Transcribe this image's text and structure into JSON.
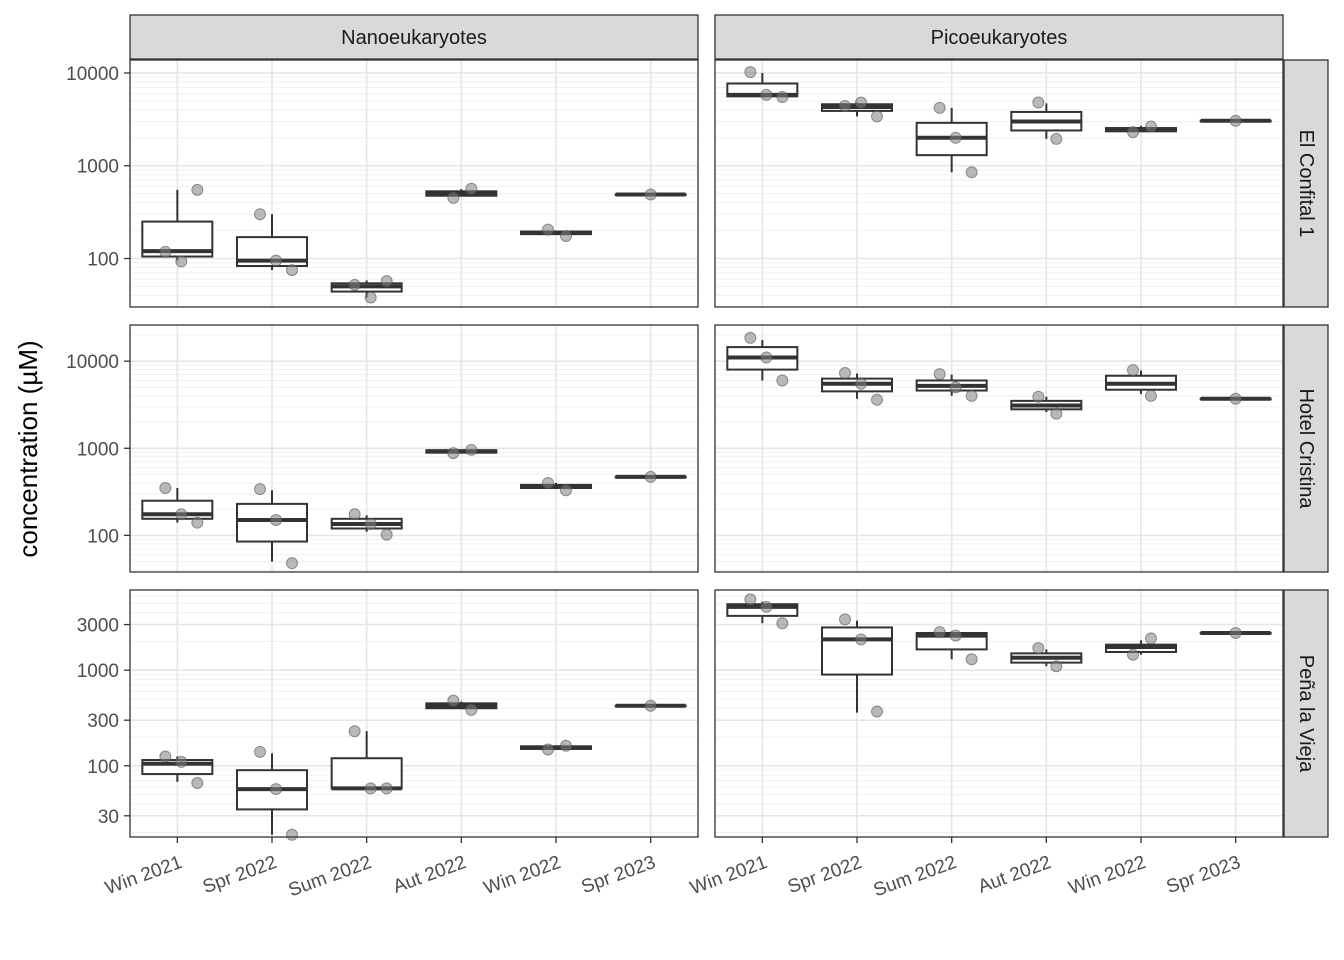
{
  "chart_data": {
    "type": "boxplot",
    "ylabel": "concentration (µM)",
    "xlabel": "",
    "y_scale": "log10",
    "grid": true,
    "columns": [
      "Nanoeukaryotes",
      "Picoeukaryotes"
    ],
    "rows": [
      "El Confital 1",
      "Hotel Cristina",
      "Peña la Vieja"
    ],
    "categories": [
      "Win 2021",
      "Spr 2022",
      "Sum 2022",
      "Aut 2022",
      "Win 2022",
      "Spr 2023"
    ],
    "row_axes": [
      {
        "ylim": [
          30,
          13800
        ],
        "ticks": [
          100,
          1000,
          10000
        ],
        "tick_labels": [
          "100",
          "1000",
          "10000"
        ]
      },
      {
        "ylim": [
          38,
          26000
        ],
        "ticks": [
          100,
          1000,
          10000
        ],
        "tick_labels": [
          "100",
          "1000",
          "10000"
        ]
      },
      {
        "ylim": [
          18,
          6900
        ],
        "ticks": [
          30,
          100,
          300,
          1000,
          3000
        ],
        "tick_labels": [
          "30",
          "100",
          "300",
          "1000",
          "3000"
        ]
      }
    ],
    "panels": [
      {
        "column": "Nanoeukaryotes",
        "row": "El Confital 1",
        "boxes": [
          {
            "category": "Win 2021",
            "min": 95,
            "q1": 105,
            "median": 120,
            "q3": 250,
            "max": 550,
            "points": [
              118,
              93,
              550
            ]
          },
          {
            "category": "Spr 2022",
            "min": 75,
            "q1": 83,
            "median": 95,
            "q3": 170,
            "max": 300,
            "points": [
              300,
              95,
              75
            ]
          },
          {
            "category": "Sum 2022",
            "min": 38,
            "q1": 44,
            "median": 50,
            "q3": 54,
            "max": 58,
            "points": [
              52,
              38,
              57
            ]
          },
          {
            "category": "Aut 2022",
            "min": 470,
            "q1": 475,
            "median": 500,
            "q3": 530,
            "max": 560,
            "points": [
              450,
              565
            ]
          },
          {
            "category": "Win 2022",
            "min": 180,
            "q1": 183,
            "median": 190,
            "q3": 195,
            "max": 200,
            "points": [
              205,
              175
            ]
          },
          {
            "category": "Spr 2023",
            "min": 490,
            "q1": 490,
            "median": 490,
            "q3": 490,
            "max": 490,
            "points": [
              490
            ]
          }
        ]
      },
      {
        "column": "Picoeukaryotes",
        "row": "El Confital 1",
        "boxes": [
          {
            "category": "Win 2021",
            "min": 5500,
            "q1": 5600,
            "median": 5800,
            "q3": 7700,
            "max": 10000,
            "points": [
              10200,
              5800,
              5500
            ]
          },
          {
            "category": "Spr 2022",
            "min": 3400,
            "q1": 3900,
            "median": 4300,
            "q3": 4600,
            "max": 4800,
            "points": [
              4400,
              4800,
              3400
            ]
          },
          {
            "category": "Sum 2022",
            "min": 850,
            "q1": 1300,
            "median": 2000,
            "q3": 2900,
            "max": 4200,
            "points": [
              4200,
              2000,
              850
            ]
          },
          {
            "category": "Aut 2022",
            "min": 1950,
            "q1": 2400,
            "median": 3000,
            "q3": 3800,
            "max": 4700,
            "points": [
              4800,
              1950
            ]
          },
          {
            "category": "Win 2022",
            "min": 2300,
            "q1": 2350,
            "median": 2450,
            "q3": 2550,
            "max": 2700,
            "points": [
              2300,
              2650
            ]
          },
          {
            "category": "Spr 2023",
            "min": 3050,
            "q1": 3050,
            "median": 3050,
            "q3": 3050,
            "max": 3050,
            "points": [
              3050
            ]
          }
        ]
      },
      {
        "column": "Nanoeukaryotes",
        "row": "Hotel Cristina",
        "boxes": [
          {
            "category": "Win 2021",
            "min": 140,
            "q1": 155,
            "median": 175,
            "q3": 250,
            "max": 350,
            "points": [
              350,
              175,
              140
            ]
          },
          {
            "category": "Spr 2022",
            "min": 50,
            "q1": 85,
            "median": 150,
            "q3": 230,
            "max": 330,
            "points": [
              340,
              150,
              48
            ]
          },
          {
            "category": "Sum 2022",
            "min": 110,
            "q1": 120,
            "median": 135,
            "q3": 155,
            "max": 170,
            "points": [
              175,
              135,
              102
            ]
          },
          {
            "category": "Aut 2022",
            "min": 880,
            "q1": 890,
            "median": 920,
            "q3": 950,
            "max": 960,
            "points": [
              880,
              960
            ]
          },
          {
            "category": "Win 2022",
            "min": 340,
            "q1": 350,
            "median": 365,
            "q3": 380,
            "max": 400,
            "points": [
              400,
              330
            ]
          },
          {
            "category": "Spr 2023",
            "min": 470,
            "q1": 470,
            "median": 470,
            "q3": 470,
            "max": 470,
            "points": [
              470
            ]
          }
        ]
      },
      {
        "column": "Picoeukaryotes",
        "row": "Hotel Cristina",
        "boxes": [
          {
            "category": "Win 2021",
            "min": 6000,
            "q1": 8000,
            "median": 11000,
            "q3": 14500,
            "max": 17500,
            "points": [
              18500,
              11000,
              6000
            ]
          },
          {
            "category": "Spr 2022",
            "min": 3700,
            "q1": 4500,
            "median": 5500,
            "q3": 6300,
            "max": 7200,
            "points": [
              7300,
              5500,
              3600
            ]
          },
          {
            "category": "Sum 2022",
            "min": 4000,
            "q1": 4600,
            "median": 5200,
            "q3": 6000,
            "max": 7000,
            "points": [
              7100,
              5000,
              4000
            ]
          },
          {
            "category": "Aut 2022",
            "min": 2600,
            "q1": 2800,
            "median": 3100,
            "q3": 3500,
            "max": 3900,
            "points": [
              3900,
              2500
            ]
          },
          {
            "category": "Win 2022",
            "min": 4200,
            "q1": 4700,
            "median": 5500,
            "q3": 6800,
            "max": 7800,
            "points": [
              7900,
              4000
            ]
          },
          {
            "category": "Spr 2023",
            "min": 3700,
            "q1": 3700,
            "median": 3700,
            "q3": 3700,
            "max": 3700,
            "points": [
              3700
            ]
          }
        ]
      },
      {
        "column": "Nanoeukaryotes",
        "row": "Peña la Vieja",
        "boxes": [
          {
            "category": "Win 2021",
            "min": 68,
            "q1": 82,
            "median": 105,
            "q3": 115,
            "max": 125,
            "points": [
              125,
              110,
              66
            ]
          },
          {
            "category": "Spr 2022",
            "min": 19,
            "q1": 35,
            "median": 57,
            "q3": 90,
            "max": 135,
            "points": [
              140,
              57,
              19
            ]
          },
          {
            "category": "Sum 2022",
            "min": 58,
            "q1": 58,
            "median": 58,
            "q3": 120,
            "max": 230,
            "points": [
              230,
              58,
              58
            ]
          },
          {
            "category": "Aut 2022",
            "min": 400,
            "q1": 400,
            "median": 425,
            "q3": 450,
            "max": 470,
            "points": [
              480,
              385
            ]
          },
          {
            "category": "Win 2022",
            "min": 150,
            "q1": 150,
            "median": 155,
            "q3": 160,
            "max": 160,
            "points": [
              148,
              162
            ]
          },
          {
            "category": "Spr 2023",
            "min": 425,
            "q1": 425,
            "median": 425,
            "q3": 425,
            "max": 425,
            "points": [
              425
            ]
          }
        ]
      },
      {
        "column": "Picoeukaryotes",
        "row": "Peña la Vieja",
        "boxes": [
          {
            "category": "Win 2021",
            "min": 3100,
            "q1": 3700,
            "median": 4600,
            "q3": 4900,
            "max": 5200,
            "points": [
              5500,
              4600,
              3100
            ]
          },
          {
            "category": "Spr 2022",
            "min": 360,
            "q1": 900,
            "median": 2100,
            "q3": 2800,
            "max": 3300,
            "points": [
              3400,
              2100,
              370
            ]
          },
          {
            "category": "Sum 2022",
            "min": 1300,
            "q1": 1650,
            "median": 2300,
            "q3": 2450,
            "max": 2550,
            "points": [
              2500,
              2300,
              1300
            ]
          },
          {
            "category": "Aut 2022",
            "min": 1100,
            "q1": 1200,
            "median": 1350,
            "q3": 1500,
            "max": 1650,
            "points": [
              1700,
              1100
            ]
          },
          {
            "category": "Win 2022",
            "min": 1450,
            "q1": 1550,
            "median": 1750,
            "q3": 1850,
            "max": 2050,
            "points": [
              1450,
              2150
            ]
          },
          {
            "category": "Spr 2023",
            "min": 2450,
            "q1": 2450,
            "median": 2450,
            "q3": 2450,
            "max": 2450,
            "points": [
              2450
            ]
          }
        ]
      }
    ]
  }
}
